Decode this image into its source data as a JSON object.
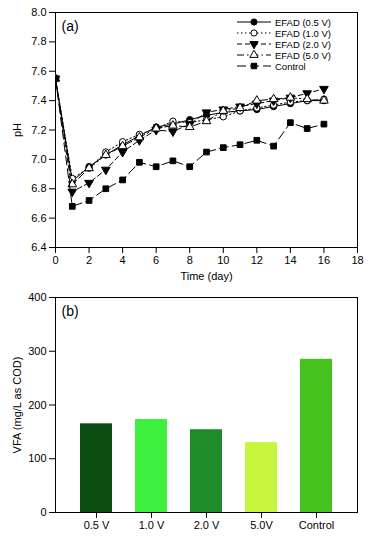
{
  "chart_data": [
    {
      "type": "line",
      "title": "(a)",
      "x_label": "Time (day)",
      "y_label": "pH",
      "x": [
        0,
        1,
        2,
        3,
        4,
        5,
        6,
        7,
        8,
        9,
        10,
        11,
        12,
        13,
        14,
        15,
        16
      ],
      "xlim": [
        0,
        18
      ],
      "xticks": [
        0,
        2,
        4,
        6,
        8,
        10,
        12,
        14,
        16,
        18
      ],
      "ylim": [
        6.4,
        8
      ],
      "yticks": [
        6.4,
        6.6,
        6.8,
        {
          "value": 7,
          "label": "7.0"
        },
        7.2,
        7.4,
        7.6,
        7.8,
        {
          "value": 8,
          "label": "8.0"
        }
      ],
      "legend": "upper right",
      "series": [
        {
          "name": "EFAD (0.5 V)",
          "color": "#000000",
          "marker": "circle",
          "line_style": "solid",
          "values": [
            7.55,
            6.85,
            6.95,
            7.03,
            7.1,
            7.16,
            7.22,
            7.24,
            7.27,
            7.3,
            7.32,
            7.33,
            7.34,
            7.36,
            7.38,
            7.4,
            7.4
          ]
        },
        {
          "name": "EFAD (1.0 V)",
          "color": "#000000",
          "marker": "circle-open",
          "line_style": "dotted",
          "values": [
            7.55,
            6.87,
            6.94,
            7.05,
            7.12,
            7.17,
            7.21,
            7.26,
            7.25,
            7.27,
            7.29,
            7.33,
            7.35,
            7.37,
            7.39,
            7.4,
            7.41
          ]
        },
        {
          "name": "EFAD (2.0 V)",
          "color": "#000000",
          "marker": "triangle-down",
          "line_style": "dashed",
          "values": [
            7.55,
            6.78,
            6.84,
            6.93,
            7.05,
            7.13,
            7.2,
            7.19,
            7.24,
            7.32,
            7.34,
            7.36,
            7.38,
            7.4,
            7.42,
            7.45,
            7.48
          ]
        },
        {
          "name": "EFAD (5.0 V)",
          "color": "#000000",
          "marker": "triangle-open",
          "line_style": "dashdot",
          "values": [
            7.55,
            6.83,
            6.94,
            7.03,
            7.09,
            7.15,
            7.21,
            7.23,
            7.22,
            7.26,
            7.33,
            7.35,
            7.4,
            7.41,
            7.42,
            7.41,
            7.4
          ]
        },
        {
          "name": "Control",
          "color": "#000000",
          "marker": "square",
          "line_style": "longdash",
          "values": [
            7.55,
            6.68,
            6.72,
            6.8,
            6.86,
            6.98,
            6.95,
            6.99,
            6.95,
            7.05,
            7.08,
            7.1,
            7.13,
            7.09,
            7.25,
            7.21,
            7.24
          ]
        }
      ]
    },
    {
      "type": "bar",
      "title": "(b)",
      "y_label": "VFA (mg/L as COD)",
      "categories": [
        "0.5 V",
        "1.0 V",
        "2.0 V",
        "5.0V",
        "Control"
      ],
      "values": [
        165,
        173,
        154,
        130,
        285
      ],
      "colors": [
        "#0b4d12",
        "#3df03d",
        "#1e8c28",
        "#c6f53c",
        "#46c21e"
      ],
      "ylim": [
        0,
        400
      ],
      "yticks": [
        0,
        100,
        200,
        300,
        400
      ]
    }
  ]
}
